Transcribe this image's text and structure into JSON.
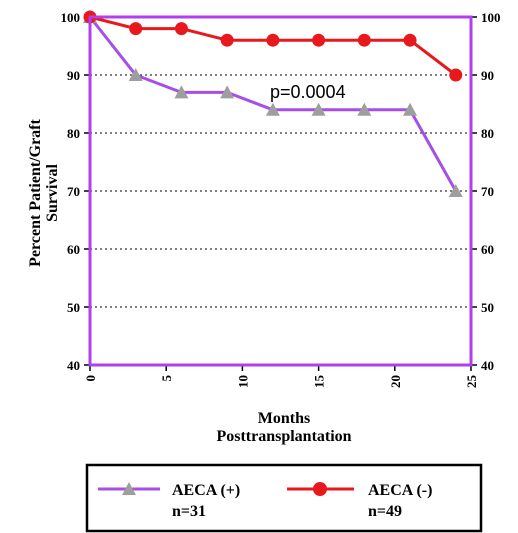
{
  "chart_data": {
    "type": "line",
    "ylabel_lines": [
      "Percent Patient/Graft",
      "Survival"
    ],
    "xlabel_lines": [
      "Months",
      "Posttransplantation"
    ],
    "xlim": [
      0,
      25
    ],
    "ylim": [
      40,
      100
    ],
    "x_ticks": [
      "0",
      "5",
      "10",
      "15",
      "20",
      "25"
    ],
    "y_ticks": [
      "40",
      "50",
      "60",
      "70",
      "80",
      "90",
      "100"
    ],
    "y_ticks_right": [
      "40",
      "50",
      "60",
      "70",
      "80",
      "90",
      "100"
    ],
    "grid": "horizontal dotted",
    "annotation": "p=0.0004",
    "series": [
      {
        "name": "AECA (+)",
        "n_label": "n=31",
        "color": "#a64ee6",
        "marker_color": "#9e9e9e",
        "marker": "triangle",
        "x": [
          0,
          3,
          6,
          9,
          12,
          15,
          18,
          21,
          24
        ],
        "values": [
          100,
          90,
          87,
          87,
          84,
          84,
          84,
          84,
          70
        ]
      },
      {
        "name": "AECA (-)",
        "n_label": "n=49",
        "color": "#e8191c",
        "marker_color": "#e8191c",
        "marker": "circle",
        "x": [
          0,
          3,
          6,
          9,
          12,
          15,
          18,
          21,
          24
        ],
        "values": [
          100,
          98,
          98,
          96,
          96,
          96,
          96,
          96,
          90
        ]
      }
    ],
    "legend_position": "bottom"
  },
  "colors": {
    "frame": "#b13ff0",
    "grid": "#000000",
    "text": "#000000"
  }
}
